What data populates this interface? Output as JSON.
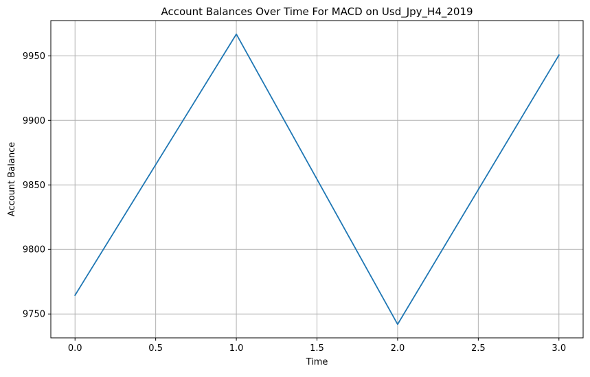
{
  "chart_data": {
    "type": "line",
    "title": "Account Balances Over Time For MACD on Usd_Jpy_H4_2019",
    "xlabel": "Time",
    "ylabel": "Account Balance",
    "x": [
      0,
      1,
      2,
      3
    ],
    "series": [
      {
        "values": [
          9764.5,
          9966.8,
          9742,
          9950.6
        ],
        "color": "#1f77b4"
      }
    ],
    "xlim": [
      -0.15,
      3.15
    ],
    "ylim": [
      9731.5,
      9977.3
    ],
    "xticks": [
      0.0,
      0.5,
      1.0,
      1.5,
      2.0,
      2.5,
      3.0
    ],
    "xtick_labels": [
      "0.0",
      "0.5",
      "1.0",
      "1.5",
      "2.0",
      "2.5",
      "3.0"
    ],
    "yticks": [
      9750,
      9800,
      9850,
      9900,
      9950
    ],
    "ytick_labels": [
      "9750",
      "9800",
      "9850",
      "9900",
      "9950"
    ],
    "grid": true,
    "legend": "none",
    "grid_color": "#b0b0b0",
    "axis_color": "#000000"
  }
}
